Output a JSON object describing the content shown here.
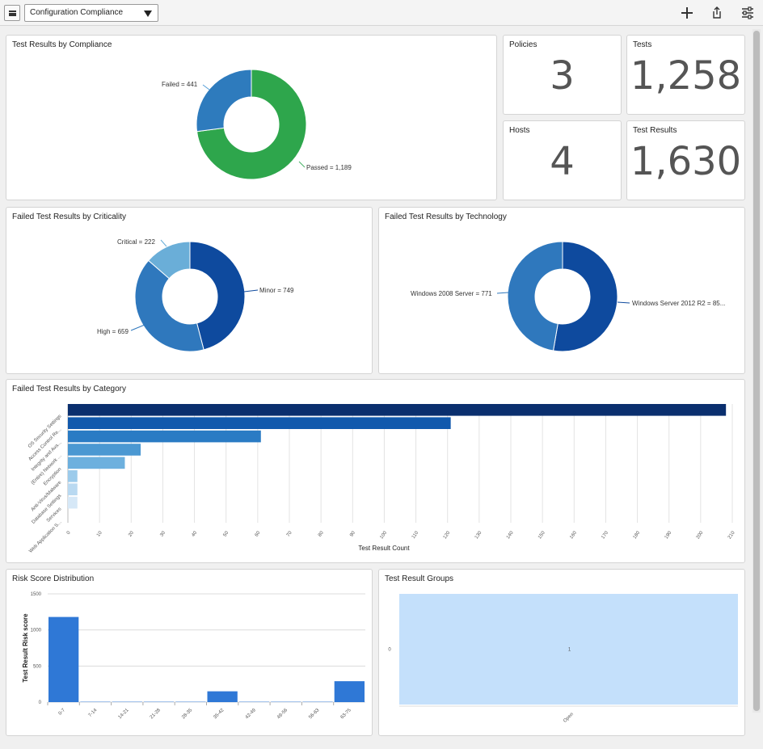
{
  "topbar": {
    "dashboard_selected": "Configuration Compliance"
  },
  "icons": {
    "menu": "hamburger-icon",
    "dropdown": "caret-down-icon",
    "add": "plus-icon",
    "share": "share-icon",
    "settings": "sliders-icon"
  },
  "panels": {
    "compliance": {
      "title": "Test Results by Compliance",
      "labels": [
        "Failed = 441",
        "Passed = 1,189"
      ]
    },
    "policies": {
      "title": "Policies",
      "value": "3"
    },
    "tests": {
      "title": "Tests",
      "value": "1,258"
    },
    "hosts": {
      "title": "Hosts",
      "value": "4"
    },
    "test_results": {
      "title": "Test Results",
      "value": "1,630"
    },
    "criticality": {
      "title": "Failed Test Results by Criticality",
      "labels": [
        "Critical = 222",
        "Minor = 749",
        "High = 659"
      ]
    },
    "technology": {
      "title": "Failed Test Results by Technology",
      "labels": [
        "Windows 2008 Server = 771",
        "Windows Server 2012 R2 = 85..."
      ]
    },
    "category": {
      "title": "Failed Test Results by Category"
    },
    "risk": {
      "title": "Risk Score Distribution"
    },
    "groups": {
      "title": "Test Result Groups"
    }
  },
  "colors": {
    "passed": "#2ea64c",
    "failed": "#2e7bbd",
    "minor": "#0e4a9e",
    "high": "#2f78bd",
    "critical": "#6aaed8",
    "tech_2012": "#0e4a9e",
    "tech_2008": "#2f78bd",
    "risk_bar": "#2f78d6",
    "group_cell": "#c4e0fb"
  },
  "chart_data": [
    {
      "type": "pie",
      "title": "Test Results by Compliance",
      "labels": [
        "Passed",
        "Failed"
      ],
      "values": [
        1189,
        441
      ]
    },
    {
      "type": "pie",
      "title": "Failed Test Results by Criticality",
      "labels": [
        "Minor",
        "High",
        "Critical"
      ],
      "values": [
        749,
        659,
        222
      ]
    },
    {
      "type": "pie",
      "title": "Failed Test Results by Technology",
      "labels": [
        "Windows Server 2012 R2",
        "Windows 2008 Server"
      ],
      "values": [
        859,
        771
      ]
    },
    {
      "type": "bar",
      "orientation": "horizontal",
      "title": "Failed Test Results by Category",
      "categories": [
        "OS Security Settings",
        "Access Control Re...",
        "Integrity and Ava...",
        "(Entire) Network ...",
        "Encryption",
        "Anti-Virus/Malware",
        "Database Settings",
        "Services",
        "Web Application S..."
      ],
      "values": [
        208,
        121,
        61,
        23,
        18,
        3,
        3,
        3,
        0
      ],
      "xlabel": "Test Result Count",
      "xlim": [
        0,
        210
      ],
      "xticks": [
        0,
        10,
        20,
        30,
        40,
        50,
        60,
        70,
        80,
        90,
        100,
        110,
        120,
        130,
        140,
        150,
        160,
        170,
        180,
        190,
        200,
        210
      ],
      "bar_colors": [
        "#0a2f6e",
        "#1159ad",
        "#2a7bc4",
        "#4b98d2",
        "#6db0de",
        "#9ccbeb",
        "#b9d9f1",
        "#d6e8f7",
        "#e9f2fb"
      ],
      "grid": true
    },
    {
      "type": "bar",
      "title": "Risk Score Distribution",
      "categories": [
        "0-7",
        "7-14",
        "14-21",
        "21-28",
        "28-35",
        "35-42",
        "42-49",
        "49-56",
        "56-63",
        "63-75"
      ],
      "values": [
        1180,
        5,
        5,
        5,
        5,
        150,
        5,
        5,
        5,
        290
      ],
      "ylabel": "Test Result Risk score",
      "ylim": [
        0,
        1500
      ],
      "yticks": [
        0,
        500,
        1000,
        1500
      ],
      "grid": true
    },
    {
      "type": "heatmap",
      "title": "Test Result Groups",
      "x": [
        "Open"
      ],
      "y": [
        "0"
      ],
      "values": [
        [
          1
        ]
      ]
    }
  ]
}
